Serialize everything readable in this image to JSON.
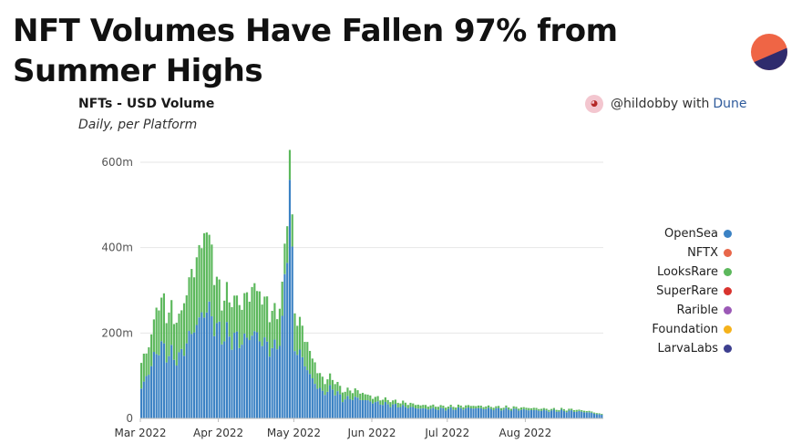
{
  "slide": {
    "title": "NFT Volumes Have Fallen 97% from Summer Highs"
  },
  "logo": {
    "name": "pie-logo-icon",
    "color_top": "#ef6545",
    "color_bottom": "#2f2b6d"
  },
  "attribution": {
    "handle": "@hildobby with",
    "platform": "Dune",
    "avatar_icon": "avatar-icon"
  },
  "chart_data": {
    "type": "bar",
    "stacked": true,
    "title": "NFTs - USD Volume",
    "subtitle": "Daily, per Platform",
    "xlabel": "",
    "ylabel": "",
    "ylim": [
      0,
      600
    ],
    "yticks": [
      0,
      200,
      400,
      600
    ],
    "ytick_labels": [
      "0",
      "200m",
      "400m",
      "600m"
    ],
    "x_start": "2022-03-01",
    "x_end": "2022-08-31",
    "xtick_dates": [
      "2022-03-01",
      "2022-04-01",
      "2022-05-01",
      "2022-06-01",
      "2022-07-01",
      "2022-08-01"
    ],
    "xtick_labels": [
      "Mar 2022",
      "Apr 2022",
      "May 2022",
      "Jun 2022",
      "Jul 2022",
      "Aug 2022"
    ],
    "grid": true,
    "legend_position": "right",
    "legend": [
      {
        "name": "OpenSea",
        "color": "#3b82c4"
      },
      {
        "name": "NFTX",
        "color": "#e8674a"
      },
      {
        "name": "LooksRare",
        "color": "#5cb85c"
      },
      {
        "name": "SuperRare",
        "color": "#d9332e"
      },
      {
        "name": "Rarible",
        "color": "#9b59b6"
      },
      {
        "name": "Foundation",
        "color": "#f5b21b"
      },
      {
        "name": "LarvaLabs",
        "color": "#3d3f8f"
      }
    ],
    "anchors": {
      "dates": [
        "2022-03-01",
        "2022-03-04",
        "2022-03-08",
        "2022-03-12",
        "2022-03-16",
        "2022-03-20",
        "2022-03-24",
        "2022-03-27",
        "2022-04-01",
        "2022-04-06",
        "2022-04-10",
        "2022-04-15",
        "2022-04-19",
        "2022-04-23",
        "2022-04-26",
        "2022-04-29",
        "2022-05-01",
        "2022-05-04",
        "2022-05-08",
        "2022-05-12",
        "2022-05-16",
        "2022-05-20",
        "2022-05-25",
        "2022-06-01",
        "2022-06-10",
        "2022-06-20",
        "2022-07-01",
        "2022-07-10",
        "2022-07-20",
        "2022-08-01",
        "2022-08-10",
        "2022-08-20",
        "2022-08-26",
        "2022-08-31"
      ],
      "OpenSea": [
        70,
        110,
        170,
        150,
        140,
        190,
        230,
        260,
        200,
        190,
        180,
        200,
        175,
        160,
        210,
        545,
        170,
        140,
        90,
        60,
        70,
        45,
        48,
        38,
        30,
        23,
        22,
        24,
        22,
        20,
        18,
        17,
        14,
        8
      ],
      "LooksRare": [
        60,
        60,
        110,
        100,
        90,
        130,
        160,
        190,
        90,
        90,
        90,
        110,
        100,
        80,
        80,
        75,
        80,
        70,
        50,
        30,
        25,
        20,
        18,
        12,
        10,
        8,
        6,
        6,
        5,
        5,
        4,
        4,
        3,
        2
      ]
    }
  }
}
